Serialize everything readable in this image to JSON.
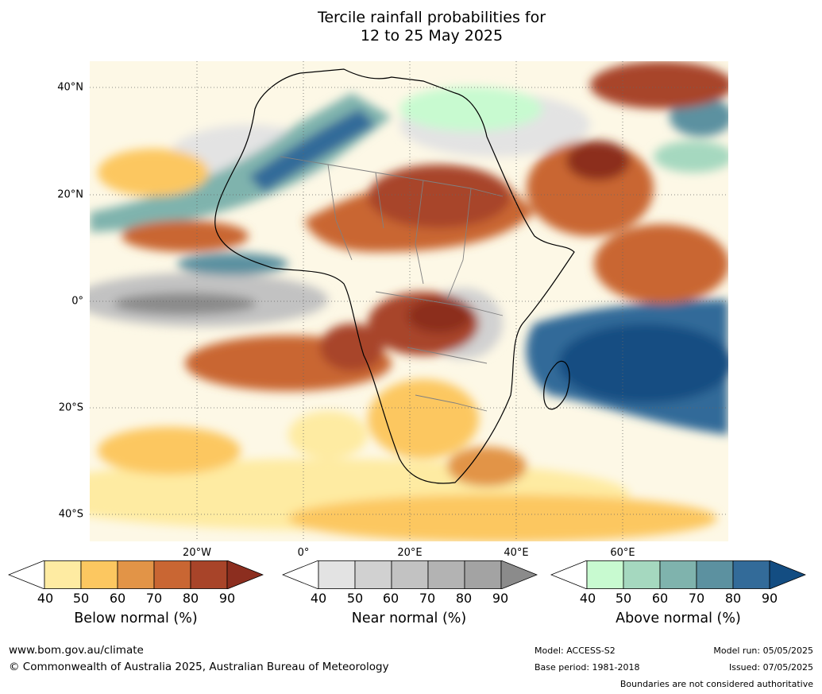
{
  "title": {
    "line1": "Tercile rainfall probabilities for",
    "line2": "12 to 25 May 2025"
  },
  "map": {
    "region": "Africa",
    "lat_labels": [
      "40°N",
      "20°N",
      "0°",
      "20°S",
      "40°S"
    ],
    "lon_labels": [
      "20°W",
      "0°",
      "20°E",
      "40°E",
      "60°E"
    ]
  },
  "colorbars": {
    "below": {
      "title": "Below normal (%)",
      "ticks": [
        "40",
        "50",
        "60",
        "70",
        "80",
        "90"
      ],
      "colors": [
        "#ffffff",
        "#feeba2",
        "#fcc760",
        "#e29447",
        "#c96633",
        "#a84429",
        "#8c2e1f"
      ]
    },
    "near": {
      "title": "Near normal (%)",
      "ticks": [
        "40",
        "50",
        "60",
        "70",
        "80",
        "90"
      ],
      "colors": [
        "#ffffff",
        "#e3e3e3",
        "#d1d1d1",
        "#c2c2c2",
        "#b3b3b3",
        "#a3a3a3",
        "#8b8b8b"
      ]
    },
    "above": {
      "title": "Above normal (%)",
      "ticks": [
        "40",
        "50",
        "60",
        "70",
        "80",
        "90"
      ],
      "colors": [
        "#ffffff",
        "#c8fad0",
        "#a5d8bf",
        "#7fb3ad",
        "#5c91a0",
        "#336b99",
        "#134d82"
      ]
    }
  },
  "footer": {
    "url": "www.bom.gov.au/climate",
    "copyright": "© Commonwealth of Australia 2025, Australian Bureau of Meteorology",
    "model": "Model: ACCESS-S2",
    "base_period": "Base period: 1981-2018",
    "model_run": "Model run: 05/05/2025",
    "issued": "Issued: 07/05/2025",
    "disclaimer": "Boundaries are not considered authoritative"
  }
}
